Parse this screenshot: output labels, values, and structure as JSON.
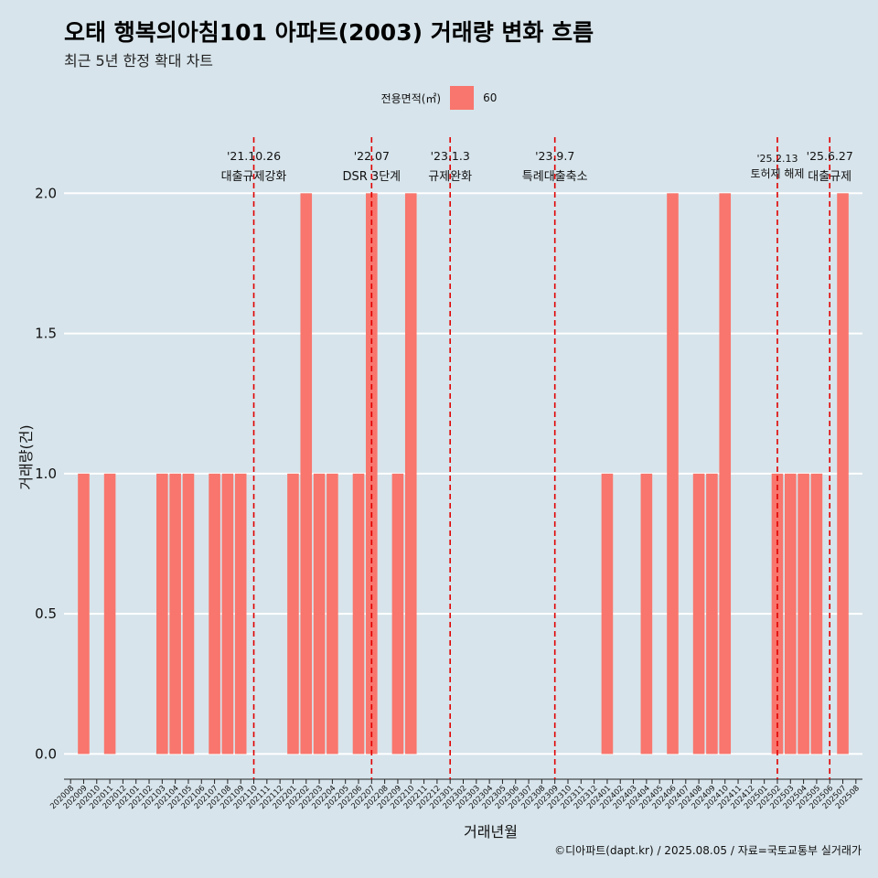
{
  "title": "오태 행복의아침101 아파트(2003) 거래량 변화 흐름",
  "subtitle": "최근 5년 한정 확대 차트",
  "caption": "©디아파트(dapt.kr) / 2025.08.05 / 자료=국토교통부 실거래가",
  "colors": {
    "bar": "#f8766d",
    "background": "#d7e4eb",
    "grid": "#ffffff",
    "event_line": "#e00000"
  },
  "chart_data": {
    "type": "bar",
    "xlabel": "거래년월",
    "ylabel": "거래량(건)",
    "ylim": [
      -0.09,
      2.2
    ],
    "yticks": [
      0.0,
      0.5,
      1.0,
      1.5,
      2.0
    ],
    "ytick_labels": [
      "0.0",
      "0.5",
      "1.0",
      "1.5",
      "2.0"
    ],
    "grid": true,
    "legend": {
      "title": "전용면적(㎡)",
      "position": "top",
      "entries": [
        "60"
      ]
    },
    "categories": [
      "202008",
      "202009",
      "202010",
      "202011",
      "202012",
      "202101",
      "202102",
      "202103",
      "202104",
      "202105",
      "202106",
      "202107",
      "202108",
      "202109",
      "202110",
      "202111",
      "202112",
      "202201",
      "202202",
      "202203",
      "202204",
      "202205",
      "202206",
      "202207",
      "202208",
      "202209",
      "202210",
      "202211",
      "202212",
      "202301",
      "202302",
      "202303",
      "202304",
      "202305",
      "202306",
      "202307",
      "202308",
      "202309",
      "202310",
      "202311",
      "202312",
      "202401",
      "202402",
      "202403",
      "202404",
      "202405",
      "202406",
      "202407",
      "202408",
      "202409",
      "202410",
      "202411",
      "202412",
      "202501",
      "202502",
      "202503",
      "202504",
      "202505",
      "202506",
      "202507",
      "202508"
    ],
    "series": [
      {
        "name": "60",
        "values": [
          0,
          1,
          0,
          1,
          0,
          0,
          0,
          1,
          1,
          1,
          0,
          1,
          1,
          1,
          0,
          0,
          0,
          1,
          2,
          1,
          1,
          0,
          1,
          2,
          0,
          1,
          2,
          0,
          0,
          0,
          0,
          0,
          0,
          0,
          0,
          0,
          0,
          0,
          0,
          0,
          0,
          1,
          0,
          0,
          1,
          0,
          2,
          0,
          1,
          1,
          2,
          0,
          0,
          0,
          1,
          1,
          1,
          1,
          0,
          2,
          0
        ]
      }
    ],
    "annotations": [
      {
        "date": "'21.10.26",
        "label": "대출규제강화",
        "x": "202110"
      },
      {
        "date": "'22.07",
        "label": "DSR 3단계",
        "x": "202207"
      },
      {
        "date": "'23.1.3",
        "label": "규제완화",
        "x": "202301"
      },
      {
        "date": "'23.9.7",
        "label": "특례대출축소",
        "x": "202309"
      },
      {
        "date": "'25.2.13",
        "label": "토허제 해제",
        "x": "202502"
      },
      {
        "date": "'25.6.27",
        "label": "대출규제",
        "x": "202506"
      }
    ]
  }
}
